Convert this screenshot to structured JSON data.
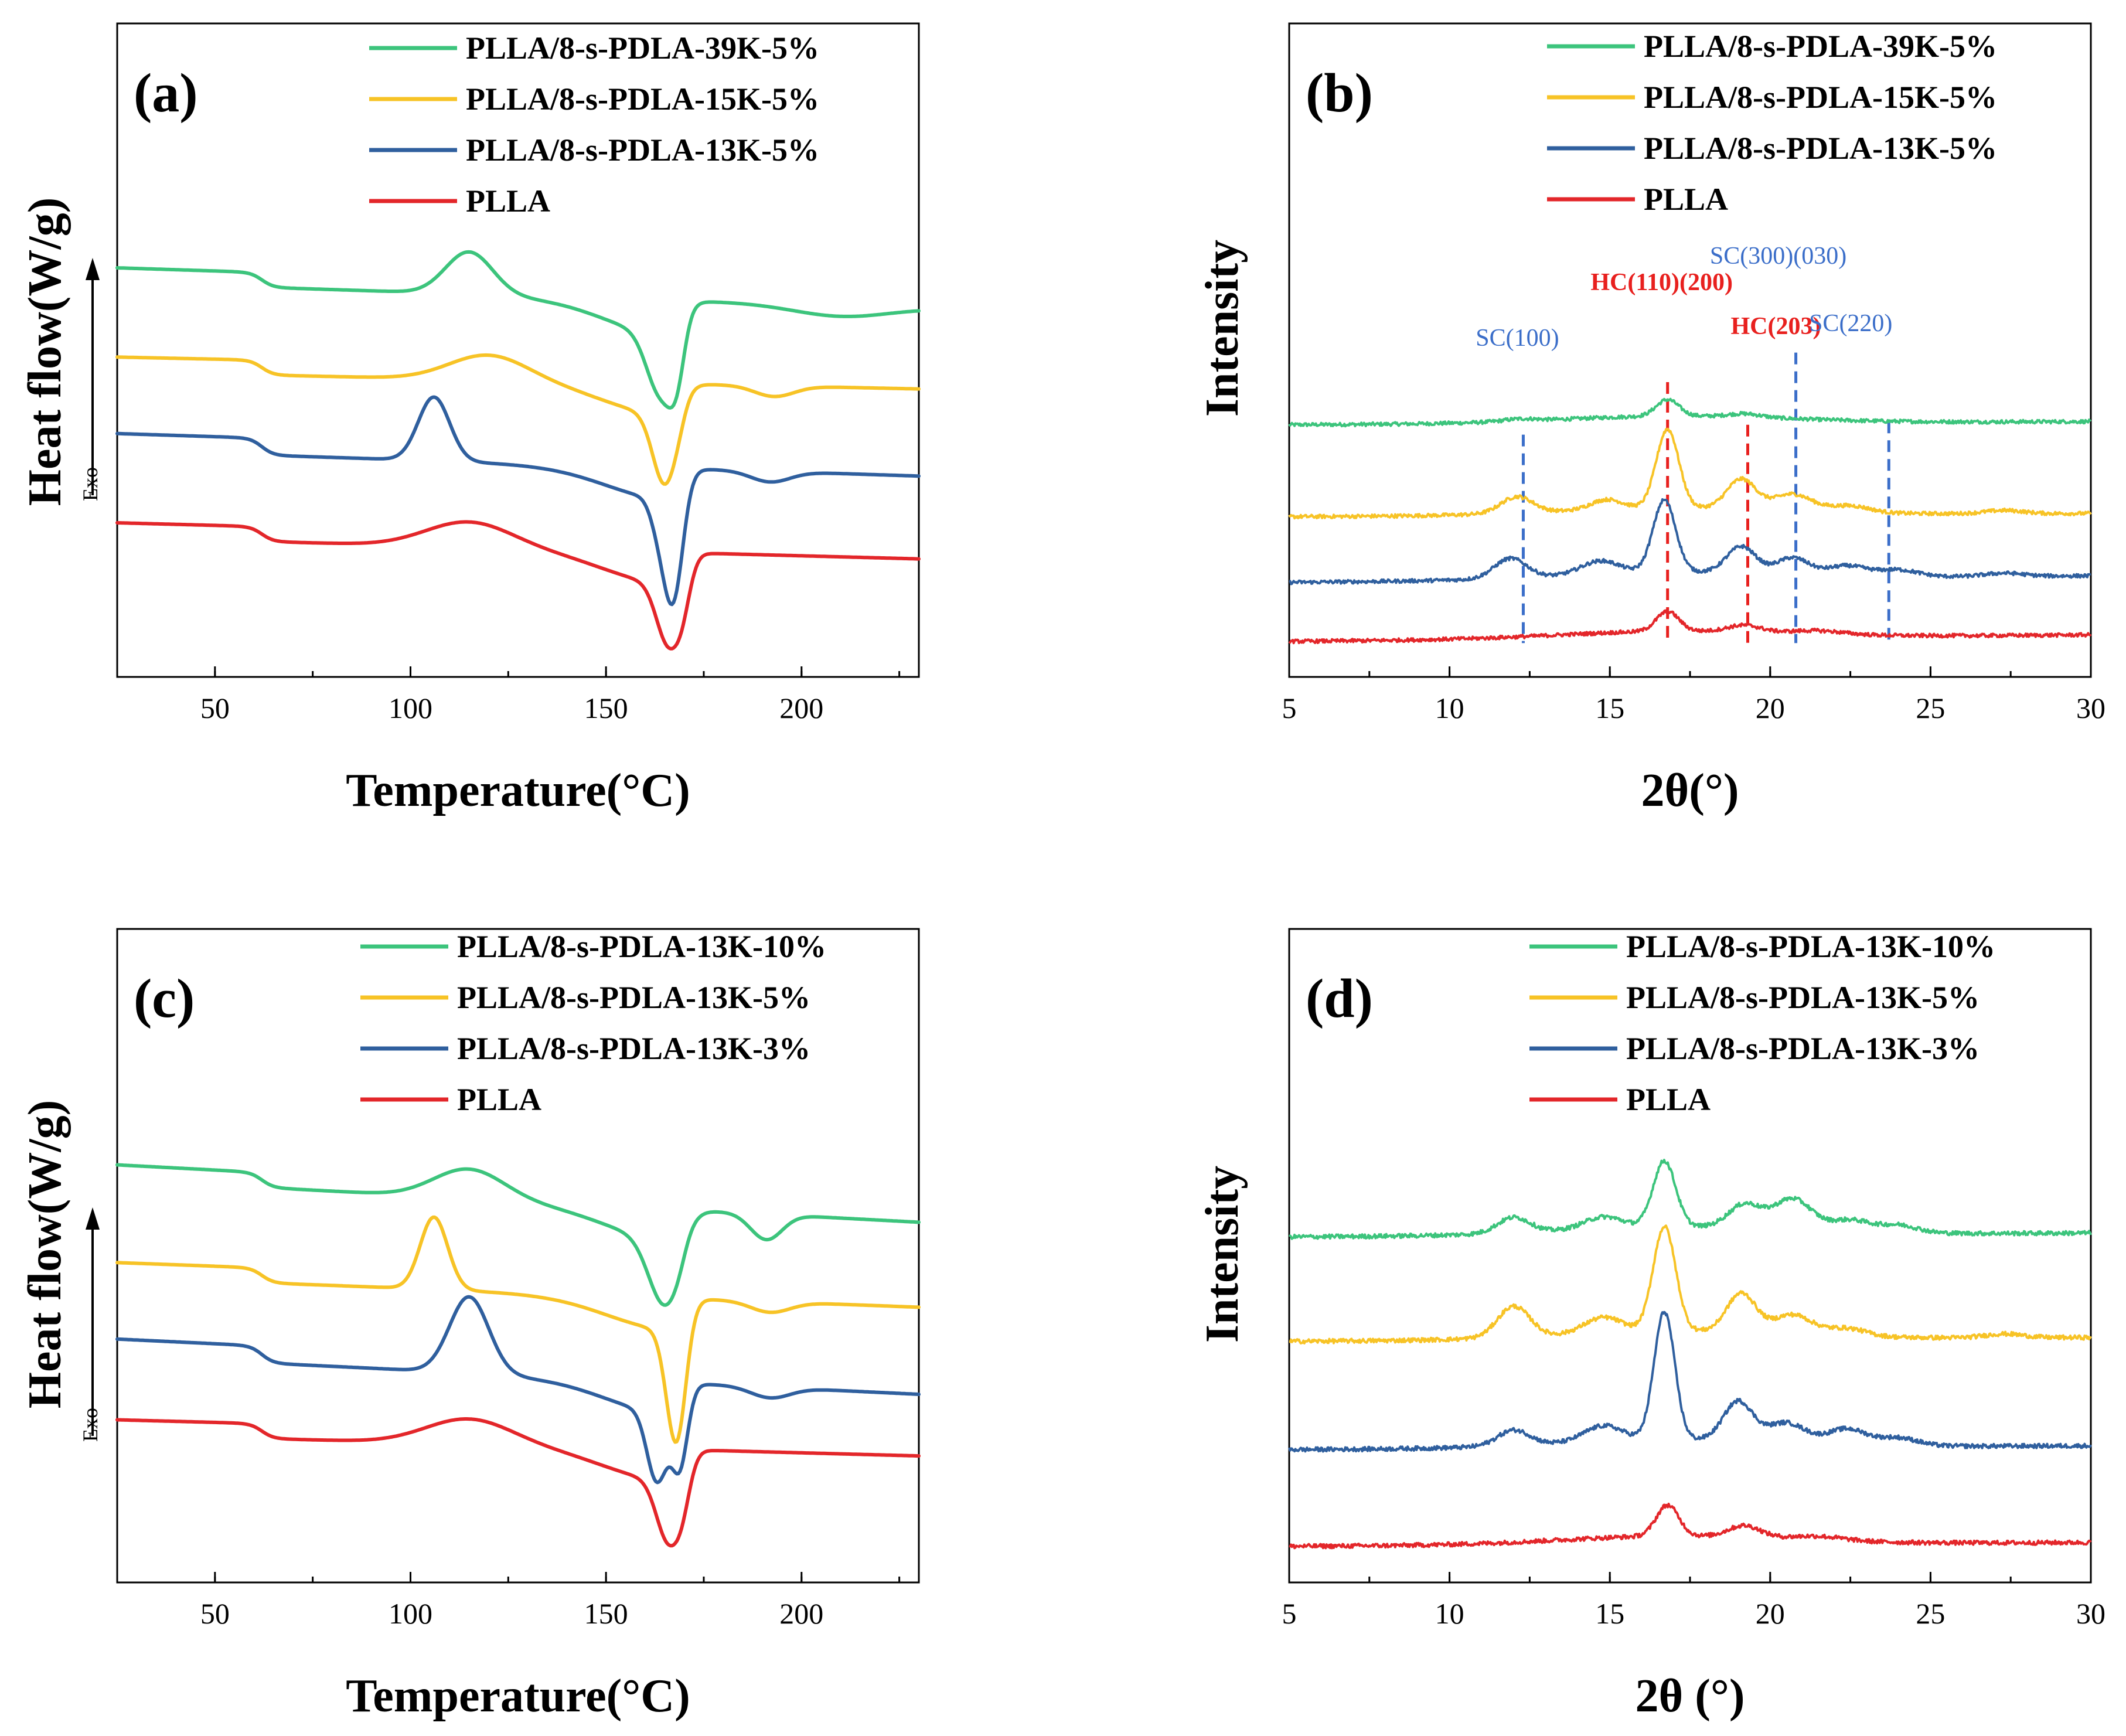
{
  "colors": {
    "green": "#3cc47c",
    "yellow": "#f7c326",
    "blue": "#2f5f9e",
    "red": "#e3262a",
    "anno_blue": "#3b6ec9",
    "anno_red": "#e8201e"
  },
  "chart_data": [
    {
      "id": "a",
      "type": "line",
      "panel_label": "(a)",
      "xlabel": "Temperature(°C)",
      "ylabel": "Heat flow(W/g)",
      "exo_label": "Exo",
      "xlim": [
        25,
        230
      ],
      "xticks": [
        50,
        100,
        150,
        200
      ],
      "ylim": [
        0,
        100
      ],
      "grid": false,
      "legend_position": "top-right",
      "series": [
        {
          "name": "PLLA/8-s-PDLA-39K-5%",
          "color": "green",
          "baseline": 88,
          "end": 82,
          "glass_drop": 3.5,
          "cold_peak": [
            115,
            10,
            6
          ],
          "melt": [
            [
              164,
              14,
              3.5
            ],
            [
              168,
              8,
              2
            ]
          ],
          "melt_recovery": 10,
          "second_dip": [
            210,
            2.5,
            12
          ]
        },
        {
          "name": "PLLA/8-s-PDLA-15K-5%",
          "color": "yellow",
          "baseline": 67,
          "end": 63,
          "glass_drop": 3.5,
          "cold_peak": [
            120,
            6,
            10
          ],
          "melt": [
            [
              165,
              16,
              3
            ]
          ],
          "melt_recovery": 9,
          "second_dip": [
            193,
            2.5,
            5
          ]
        },
        {
          "name": "PLLA/8-s-PDLA-13K-5%",
          "color": "blue",
          "baseline": 49,
          "end": 43,
          "glass_drop": 4,
          "cold_peak": [
            106,
            15,
            4
          ],
          "melt": [
            [
              167,
              24,
              2.5
            ],
            [
              163,
              4,
              2
            ]
          ],
          "melt_recovery": 9,
          "second_dip": [
            192,
            2.5,
            5
          ]
        },
        {
          "name": "PLLA",
          "color": "red",
          "baseline": 28,
          "end": 23,
          "glass_drop": 3.5,
          "cold_peak": [
            115,
            6,
            11
          ],
          "melt": [
            [
              166,
              14,
              3
            ],
            [
              170,
              6,
              2
            ]
          ],
          "melt_recovery": 9,
          "second_dip": null
        }
      ]
    },
    {
      "id": "b",
      "type": "line",
      "panel_label": "(b)",
      "xlabel": "2θ(°)",
      "ylabel": "Intensity",
      "xlim": [
        5,
        30
      ],
      "xticks": [
        5,
        10,
        15,
        20,
        25,
        30
      ],
      "ylim": [
        0,
        100
      ],
      "grid": false,
      "legend_position": "top-right",
      "series": [
        {
          "name": "PLLA/8-s-PDLA-39K-5%",
          "color": "green",
          "baseline": 67,
          "end": 68,
          "peaks": [
            [
              16.8,
              5,
              0.35
            ],
            [
              19.2,
              1,
              0.5
            ],
            [
              12.2,
              0.7,
              0.5
            ]
          ]
        },
        {
          "name": "PLLA/8-s-PDLA-15K-5%",
          "color": "yellow",
          "baseline": 39,
          "end": 40,
          "peaks": [
            [
              16.8,
              24,
              0.35
            ],
            [
              19.1,
              9,
              0.45
            ],
            [
              12.1,
              5,
              0.5
            ],
            [
              14.9,
              3,
              0.5
            ],
            [
              20.7,
              5,
              0.6
            ],
            [
              22.5,
              2,
              0.6
            ],
            [
              27.3,
              1,
              0.6
            ]
          ]
        },
        {
          "name": "PLLA/8-s-PDLA-13K-5%",
          "color": "blue",
          "baseline": 19,
          "end": 21,
          "peaks": [
            [
              16.7,
              22,
              0.35
            ],
            [
              19.1,
              8,
              0.45
            ],
            [
              11.9,
              6,
              0.5
            ],
            [
              14.7,
              4,
              0.6
            ],
            [
              20.7,
              5,
              0.5
            ],
            [
              22.4,
              3,
              0.6
            ],
            [
              24,
              2,
              0.6
            ],
            [
              27.3,
              1,
              0.6
            ]
          ]
        },
        {
          "name": "PLLA",
          "color": "red",
          "baseline": 1,
          "end": 3,
          "peaks": [
            [
              16.8,
              6,
              0.35
            ],
            [
              19.2,
              2,
              0.5
            ],
            [
              21.5,
              1,
              0.8
            ]
          ]
        }
      ],
      "annotations": [
        {
          "label": "SC(100)",
          "x": 12.3,
          "color": "anno_blue",
          "line_top": 64
        },
        {
          "label": "HC(110)(200)",
          "x": 16.8,
          "color": "anno_red",
          "line_top": 80
        },
        {
          "label": "HC(203)",
          "x": 19.3,
          "color": "anno_red",
          "line_top": 67
        },
        {
          "label": "SC(300)(030)",
          "x": 20.8,
          "color": "anno_blue",
          "line_top": 89
        },
        {
          "label": "SC(220)",
          "x": 23.7,
          "color": "anno_blue",
          "line_top": 68
        }
      ]
    },
    {
      "id": "c",
      "type": "line",
      "panel_label": "(c)",
      "xlabel": "Temperature(°C)",
      "ylabel": "Heat flow(W/g)",
      "exo_label": "Exo",
      "xlim": [
        25,
        230
      ],
      "xticks": [
        50,
        100,
        150,
        200
      ],
      "ylim": [
        0,
        100
      ],
      "grid": false,
      "legend_position": "top-right",
      "series": [
        {
          "name": "PLLA/8-s-PDLA-13K-10%",
          "color": "green",
          "baseline": 90,
          "end": 80,
          "glass_drop": 3.5,
          "cold_peak": [
            115,
            7,
            9
          ],
          "melt": [
            [
              165,
              15,
              4
            ]
          ],
          "melt_recovery": 9,
          "second_dip": [
            191,
            6,
            4
          ]
        },
        {
          "name": "PLLA/8-s-PDLA-13K-5%",
          "color": "yellow",
          "baseline": 67,
          "end": 60,
          "glass_drop": 3.5,
          "cold_peak": [
            106,
            17,
            3.5
          ],
          "melt": [
            [
              168,
              27,
              2.5
            ]
          ],
          "melt_recovery": 9,
          "second_dip": [
            192,
            2.5,
            5
          ]
        },
        {
          "name": "PLLA/8-s-PDLA-13K-3%",
          "color": "blue",
          "baseline": 49,
          "end": 40,
          "glass_drop": 4,
          "cold_peak": [
            115,
            18,
            5
          ],
          "melt": [
            [
              163,
              16,
              2.5
            ],
            [
              169,
              14,
              2
            ]
          ],
          "melt_recovery": 9,
          "second_dip": [
            192,
            2.5,
            5
          ]
        },
        {
          "name": "PLLA",
          "color": "red",
          "baseline": 30,
          "end": 25,
          "glass_drop": 3.5,
          "cold_peak": [
            115,
            6,
            11
          ],
          "melt": [
            [
              166,
              14,
              3
            ],
            [
              170,
              6,
              2
            ]
          ],
          "melt_recovery": 9,
          "second_dip": null
        }
      ]
    },
    {
      "id": "d",
      "type": "line",
      "panel_label": "(d)",
      "xlabel": "2θ (°)",
      "ylabel": "Intensity",
      "xlim": [
        5,
        30
      ],
      "xticks": [
        5,
        10,
        15,
        20,
        25,
        30
      ],
      "ylim": [
        0,
        100
      ],
      "grid": false,
      "legend_position": "top-right",
      "series": [
        {
          "name": "PLLA/8-s-PDLA-13K-10%",
          "color": "green",
          "baseline": 81,
          "end": 82,
          "peaks": [
            [
              16.7,
              17,
              0.35
            ],
            [
              19.2,
              6,
              0.5
            ],
            [
              20.7,
              8,
              0.6
            ],
            [
              12.0,
              4,
              0.5
            ],
            [
              14.8,
              3,
              0.6
            ],
            [
              22.5,
              3,
              0.6
            ],
            [
              24,
              2,
              0.6
            ]
          ]
        },
        {
          "name": "PLLA/8-s-PDLA-13K-5%",
          "color": "yellow",
          "baseline": 54,
          "end": 55,
          "peaks": [
            [
              16.7,
              27,
              0.35
            ],
            [
              19.1,
              10,
              0.45
            ],
            [
              12.0,
              8,
              0.5
            ],
            [
              14.8,
              4,
              0.6
            ],
            [
              20.7,
              5,
              0.6
            ],
            [
              22.4,
              2,
              0.6
            ],
            [
              27.3,
              1,
              0.6
            ]
          ]
        },
        {
          "name": "PLLA/8-s-PDLA-13K-3%",
          "color": "blue",
          "baseline": 26,
          "end": 27,
          "peaks": [
            [
              16.7,
              33,
              0.32
            ],
            [
              19.0,
              10,
              0.45
            ],
            [
              12.0,
              4,
              0.5
            ],
            [
              14.8,
              4,
              0.6
            ],
            [
              20.5,
              5,
              0.6
            ],
            [
              22.4,
              4,
              0.6
            ],
            [
              24,
              2,
              0.6
            ]
          ]
        },
        {
          "name": "PLLA",
          "color": "red",
          "baseline": 1,
          "end": 2,
          "peaks": [
            [
              16.8,
              8,
              0.35
            ],
            [
              19.2,
              3,
              0.5
            ],
            [
              21.5,
              1,
              0.8
            ]
          ]
        }
      ]
    }
  ]
}
